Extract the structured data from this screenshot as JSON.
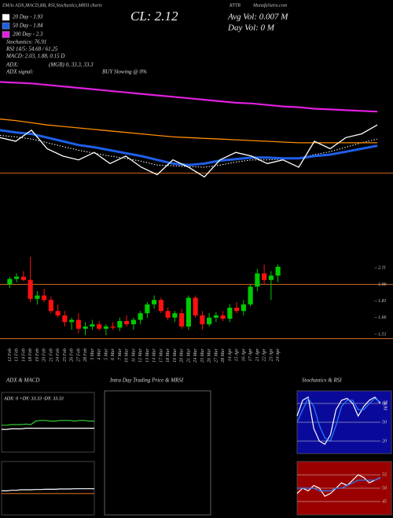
{
  "chart_data": [
    {
      "type": "line",
      "title": "CL: 2.12",
      "subtitle": "EMAs ADX,MACD,BB, RSI,Stochastics,MRSI charts",
      "symbol": "RTTR",
      "site": "MunafaSutra.com",
      "annotations": [
        "Stochastics: 76.91",
        "RSI 14/5: 54.68 / 61.25",
        "MACD: 2.03, 1.88, 0.15 D",
        "ADX:",
        "(MGB) 0, 33.3, 33.3",
        "ADX signal:",
        "BUY Slowing @ 0%",
        "Avg Vol: 0.007 M",
        "Day Vol: 0 M"
      ],
      "ylim": [
        1.35,
        2.8
      ],
      "levels": [
        1.47
      ],
      "level_color": "#d2691e",
      "series": [
        {
          "name": "20 Day - 1.93",
          "color": "#ffffff",
          "style": "dotted",
          "values": [
            1.98,
            1.96,
            1.93,
            1.88,
            1.83,
            1.78,
            1.74,
            1.7,
            1.67,
            1.63,
            1.58,
            1.57,
            1.56,
            1.55,
            1.58,
            1.62,
            1.65,
            1.65,
            1.66,
            1.67,
            1.72,
            1.76,
            1.82,
            1.88,
            1.93
          ]
        },
        {
          "name": "50 Day - 1.84",
          "color": "#1f5fe8",
          "values": [
            2.05,
            2.02,
            2.0,
            1.95,
            1.9,
            1.85,
            1.82,
            1.78,
            1.74,
            1.7,
            1.65,
            1.6,
            1.58,
            1.6,
            1.64,
            1.66,
            1.68,
            1.68,
            1.67,
            1.67,
            1.7,
            1.72,
            1.76,
            1.8,
            1.84
          ]
        },
        {
          "name": "200 Day - 2.3",
          "color": "#e020e0",
          "values": [
            2.7,
            2.69,
            2.68,
            2.66,
            2.64,
            2.62,
            2.6,
            2.58,
            2.56,
            2.54,
            2.52,
            2.5,
            2.48,
            2.46,
            2.44,
            2.42,
            2.41,
            2.39,
            2.37,
            2.36,
            2.34,
            2.33,
            2.32,
            2.31,
            2.3
          ]
        },
        {
          "color": "#ff8c00",
          "values": [
            2.2,
            2.18,
            2.15,
            2.12,
            2.1,
            2.08,
            2.06,
            2.04,
            2.02,
            2.0,
            1.98,
            1.96,
            1.95,
            1.94,
            1.93,
            1.92,
            1.91,
            1.9,
            1.89,
            1.88,
            1.88,
            1.88,
            1.88,
            1.88,
            1.88
          ]
        },
        {
          "color": "#ffffff",
          "values": [
            1.95,
            1.9,
            2.05,
            1.8,
            1.7,
            1.65,
            1.75,
            1.6,
            1.7,
            1.55,
            1.45,
            1.65,
            1.55,
            1.42,
            1.65,
            1.75,
            1.7,
            1.6,
            1.65,
            1.55,
            1.9,
            1.8,
            1.95,
            2.0,
            2.12
          ]
        }
      ]
    },
    {
      "type": "candlestick",
      "ylim": [
        1.41,
        2.19
      ],
      "yticks": [
        2.11,
        1.96,
        1.81,
        1.66,
        1.51
      ],
      "levels": [
        1.96,
        1.47
      ],
      "level_color": "#d2691e",
      "up_color": "#00cc00",
      "down_color": "#ff1010",
      "categories": [
        "12 Feb",
        "13 Feb",
        "14 Feb",
        "18 Feb",
        "19 Feb",
        "20 Feb",
        "21 Feb",
        "24 Feb",
        "25 Feb",
        "26 Feb",
        "27 Feb",
        "28 Feb",
        "3 Mar",
        "4 Mar",
        "5 Mar",
        "6 Mar",
        "7 Mar",
        "10 Mar",
        "11 Mar",
        "12 Mar",
        "13 Mar",
        "14 Mar",
        "17 Mar",
        "18 Mar",
        "19 Mar",
        "20 Mar",
        "21 Mar",
        "24 Mar",
        "25 Mar",
        "26 Mar",
        "27 Mar",
        "28 Mar",
        "14 Apr",
        "15 Apr",
        "16 Apr",
        "17 Apr",
        "21 Apr",
        "22 Apr",
        "23 Apr",
        "24 Apr"
      ],
      "open": [
        1.96,
        2.01,
        2.03,
        2.0,
        1.83,
        1.86,
        1.82,
        1.72,
        1.68,
        1.62,
        1.64,
        1.56,
        1.58,
        1.6,
        1.56,
        1.58,
        1.57,
        1.63,
        1.6,
        1.64,
        1.7,
        1.78,
        1.82,
        1.72,
        1.66,
        1.7,
        1.58,
        1.84,
        1.68,
        1.6,
        1.66,
        1.68,
        1.65,
        1.75,
        1.72,
        1.78,
        1.94,
        2.06,
        2.0,
        2.04
      ],
      "high": [
        2.03,
        2.06,
        2.08,
        2.21,
        1.9,
        1.92,
        1.85,
        1.78,
        1.72,
        1.66,
        1.7,
        1.62,
        1.64,
        1.63,
        1.6,
        1.62,
        1.66,
        1.68,
        1.66,
        1.72,
        1.8,
        1.86,
        1.84,
        1.75,
        1.72,
        1.74,
        1.86,
        1.86,
        1.72,
        1.7,
        1.71,
        1.72,
        1.78,
        1.8,
        1.82,
        1.96,
        2.1,
        2.14,
        2.08,
        2.14
      ],
      "low": [
        1.93,
        1.98,
        1.99,
        1.8,
        1.78,
        1.8,
        1.7,
        1.66,
        1.58,
        1.55,
        1.52,
        1.5,
        1.55,
        1.54,
        1.5,
        1.55,
        1.54,
        1.58,
        1.55,
        1.6,
        1.66,
        1.74,
        1.7,
        1.64,
        1.62,
        1.56,
        1.55,
        1.66,
        1.55,
        1.58,
        1.62,
        1.63,
        1.62,
        1.7,
        1.68,
        1.76,
        1.9,
        1.96,
        1.82,
        1.98
      ],
      "close": [
        2.01,
        2.03,
        2.0,
        1.83,
        1.86,
        1.82,
        1.72,
        1.68,
        1.62,
        1.64,
        1.56,
        1.58,
        1.6,
        1.56,
        1.58,
        1.57,
        1.63,
        1.6,
        1.64,
        1.7,
        1.78,
        1.82,
        1.72,
        1.66,
        1.7,
        1.58,
        1.84,
        1.68,
        1.6,
        1.66,
        1.68,
        1.65,
        1.75,
        1.72,
        1.78,
        1.94,
        2.06,
        2.0,
        2.04,
        2.12
      ]
    },
    {
      "type": "line",
      "title": "ADX & MACD",
      "label": "ADX: 0  +DY: 33.33  -DY: 33.33",
      "ylim": [
        0,
        100
      ],
      "series": [
        {
          "color": "#33cc33",
          "values": [
            45,
            45,
            46,
            46,
            46,
            47,
            46,
            52,
            53,
            53,
            52,
            52,
            53,
            53,
            53,
            52,
            53,
            53,
            52,
            52
          ]
        },
        {
          "color": "#ffffff",
          "values": [
            38,
            38,
            39,
            39,
            39,
            40,
            40,
            40,
            40,
            40,
            40,
            40,
            40,
            40,
            40,
            40,
            40,
            40,
            40,
            40
          ]
        }
      ]
    },
    {
      "type": "line",
      "ylim": [
        -1,
        1
      ],
      "series": [
        {
          "color": "#ffffff",
          "values": [
            -0.1,
            -0.1,
            -0.08,
            -0.08,
            -0.06,
            -0.06,
            -0.06,
            -0.05,
            -0.05,
            -0.04,
            -0.04,
            -0.04,
            -0.03,
            -0.03,
            -0.03,
            -0.02,
            -0.02,
            -0.02,
            -0.02,
            -0.02
          ]
        },
        {
          "color": "#d2691e",
          "values": [
            -0.2,
            -0.2,
            -0.2,
            -0.2,
            -0.2,
            -0.2,
            -0.2,
            -0.2,
            -0.2,
            -0.2,
            -0.2,
            -0.2,
            -0.2,
            -0.2,
            -0.2,
            -0.2,
            -0.2,
            -0.2,
            -0.2,
            -0.2
          ]
        }
      ]
    },
    {
      "type": "line",
      "title": "Intra Day Trading Price & MRSI",
      "border": "#777777",
      "series": []
    },
    {
      "type": "line",
      "title": "Stochastics & RSI",
      "background": "#0a0a9a",
      "ylim": [
        0,
        100
      ],
      "yticks": [
        80,
        50,
        20
      ],
      "value_label": {
        "value": 76.91,
        "label": "76.91"
      },
      "series": [
        {
          "color": "#ffffff",
          "values": [
            60,
            85,
            90,
            40,
            20,
            15,
            30,
            70,
            85,
            88,
            80,
            60,
            75,
            85,
            90,
            80
          ]
        },
        {
          "color": "#2a7fff",
          "values": [
            50,
            70,
            88,
            75,
            45,
            25,
            20,
            45,
            75,
            85,
            85,
            70,
            70,
            80,
            88,
            82
          ]
        }
      ]
    },
    {
      "type": "line",
      "background": "#9a0000",
      "ylim": [
        40,
        60
      ],
      "yticks": [
        55,
        50,
        45
      ],
      "series": [
        {
          "color": "#ffffff",
          "values": [
            48,
            50,
            49,
            51,
            50,
            47,
            48,
            50,
            52,
            51,
            53,
            55,
            54,
            52,
            53,
            54
          ]
        },
        {
          "color": "#2a7fff",
          "values": [
            50,
            50,
            50,
            50,
            49,
            49,
            49,
            50,
            50,
            51,
            52,
            53,
            53,
            53,
            53,
            54
          ]
        }
      ]
    }
  ]
}
